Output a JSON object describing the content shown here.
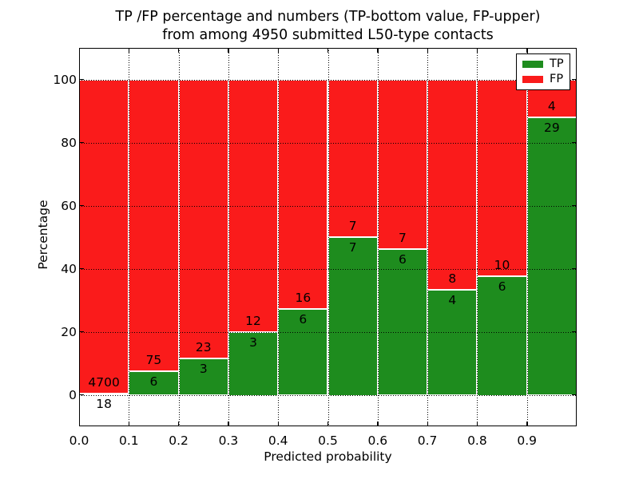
{
  "figure": {
    "title_line1": "TP /FP percentage and numbers (TP-bottom value, FP-upper)",
    "title_line2": "from among 4950 submitted L50-type contacts"
  },
  "chart_data": {
    "type": "bar",
    "stacked": true,
    "normalized_to_100_percent": true,
    "title": "TP /FP percentage and numbers (TP-bottom value, FP-upper) from among 4950 submitted L50-type contacts",
    "xlabel": "Predicted probability",
    "ylabel": "Percentage",
    "xlim": [
      0.0,
      1.0
    ],
    "ylim": [
      -10,
      110
    ],
    "bin_width": 0.1,
    "bin_starts": [
      0.0,
      0.1,
      0.2,
      0.3,
      0.4,
      0.5,
      0.6,
      0.7,
      0.8,
      0.9
    ],
    "categories": [
      "0.0-0.1",
      "0.1-0.2",
      "0.2-0.3",
      "0.3-0.4",
      "0.4-0.5",
      "0.5-0.6",
      "0.6-0.7",
      "0.7-0.8",
      "0.8-0.9",
      "0.9-1.0"
    ],
    "series": [
      {
        "name": "TP",
        "color": "#1e8c1e",
        "values": [
          18,
          6,
          3,
          3,
          6,
          7,
          6,
          4,
          6,
          29
        ]
      },
      {
        "name": "FP",
        "color": "#fa1b1b",
        "values": [
          4700,
          75,
          23,
          12,
          16,
          7,
          7,
          8,
          10,
          4
        ]
      }
    ],
    "total_submitted": 4950,
    "x_tick_labels": [
      "0.0",
      "0.1",
      "0.2",
      "0.3",
      "0.4",
      "0.5",
      "0.6",
      "0.7",
      "0.8",
      "0.9"
    ],
    "y_ticks": [
      0,
      20,
      40,
      60,
      80,
      100
    ],
    "y_tick_labels": [
      "0",
      "20",
      "40",
      "60",
      "80",
      "100"
    ],
    "grid": true,
    "grid_style": "dotted",
    "bar_edge_color": "#ffffff",
    "legend": {
      "position": "upper right",
      "entries": [
        {
          "label": "TP",
          "color": "#1e8c1e"
        },
        {
          "label": "FP",
          "color": "#fa1b1b"
        }
      ]
    }
  }
}
